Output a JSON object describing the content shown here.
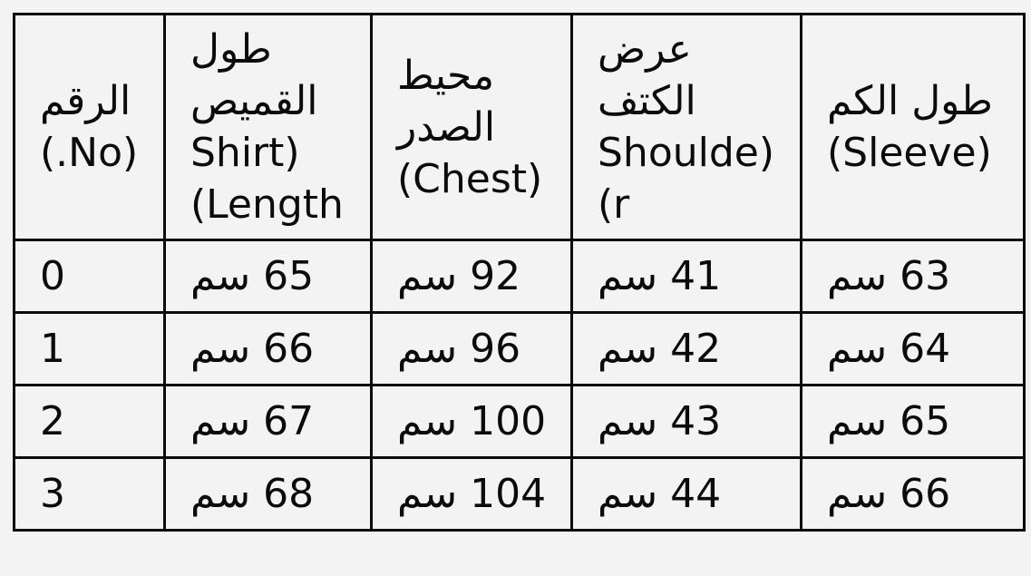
{
  "page": {
    "background_color": "#f3f3f4",
    "border_color": "#0b0b0b",
    "text_color": "#0b0b0b"
  },
  "chart_data": {
    "type": "table",
    "title": "",
    "direction": "rtl",
    "unit": "سم",
    "columns": [
      {
        "ar": "الرقم",
        "en": "No."
      },
      {
        "ar": "طول القميص",
        "en": "Shirt Length"
      },
      {
        "ar": "محيط الصدر",
        "en": "Chest"
      },
      {
        "ar": "عرض الكتف",
        "en": "Shoulder"
      },
      {
        "ar": "طول الكم",
        "en": "Sleeve"
      }
    ],
    "rows": [
      [
        0,
        65,
        92,
        41,
        63
      ],
      [
        1,
        66,
        96,
        42,
        64
      ],
      [
        2,
        67,
        100,
        43,
        65
      ],
      [
        3,
        68,
        104,
        44,
        66
      ]
    ]
  },
  "table": {
    "columns": [
      {
        "name": "number",
        "lines": [
          "الرقم",
          "(No.)"
        ]
      },
      {
        "name": "shirt-length",
        "lines": [
          "طول",
          "القميص",
          "(Shirt",
          "Length)"
        ]
      },
      {
        "name": "chest",
        "lines": [
          "محيط",
          "الصدر",
          "(Chest)"
        ]
      },
      {
        "name": "shoulder",
        "lines": [
          "عرض",
          "الكتف",
          "(Shoulde",
          "r)"
        ]
      },
      {
        "name": "sleeve",
        "lines": [
          "طول الكم",
          "(Sleeve)"
        ]
      }
    ],
    "rows": [
      {
        "cells": [
          "0",
          "65 سم",
          "92 سم",
          "41 سم",
          "63 سم"
        ]
      },
      {
        "cells": [
          "1",
          "66 سم",
          "96 سم",
          "42 سم",
          "64 سم"
        ]
      },
      {
        "cells": [
          "2",
          "67 سم",
          "100 سم",
          "43 سم",
          "65 سم"
        ]
      },
      {
        "cells": [
          "3",
          "68 سم",
          "104 سم",
          "44 سم",
          "66 سم"
        ]
      }
    ]
  }
}
